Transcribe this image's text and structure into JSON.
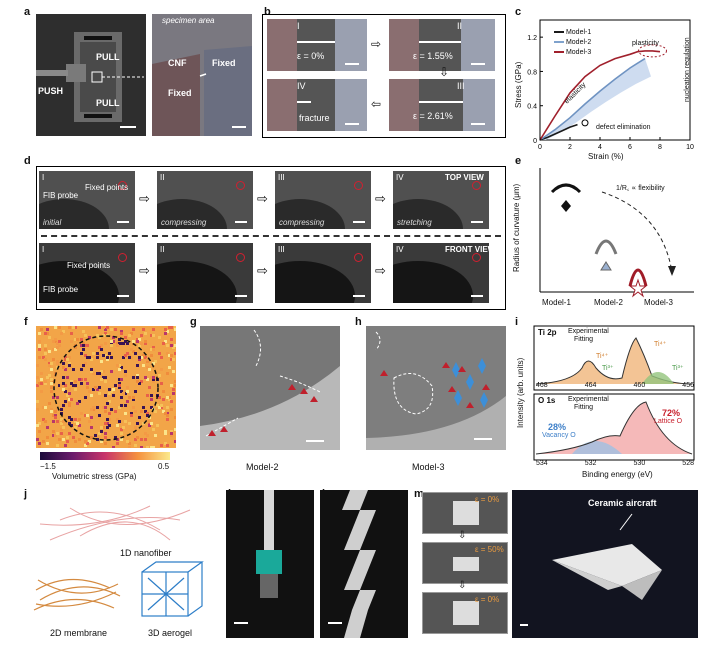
{
  "panels": {
    "a": "a",
    "b": "b",
    "c": "c",
    "d": "d",
    "e": "e",
    "f": "f",
    "g": "g",
    "h": "h",
    "i": "i",
    "j": "j",
    "k": "k",
    "l": "l",
    "m": "m",
    "n": "n"
  },
  "a": {
    "specimen_area": "specimen area",
    "push": "PUSH",
    "pull_top": "PULL",
    "pull_bottom": "PULL",
    "cnf": "CNF",
    "fixed1": "Fixed",
    "fixed2": "Fixed"
  },
  "b": {
    "frames": [
      {
        "num": "I",
        "label": "ε = 0%"
      },
      {
        "num": "II",
        "label": "ε = 1.55%"
      },
      {
        "num": "III",
        "label": "ε = 2.61%"
      },
      {
        "num": "IV",
        "label": "fracture"
      }
    ]
  },
  "c": {
    "legend": [
      "Model-1",
      "Model-2",
      "Model-3"
    ],
    "ylabel": "Stress (GPa)",
    "xlabel": "Strain (%)",
    "ticks_y": [
      "0",
      "0.4",
      "0.8",
      "1.2"
    ],
    "ticks_x": [
      "0",
      "2",
      "4",
      "6",
      "8",
      "10"
    ],
    "ann": {
      "plasticity": "plasticity",
      "elasticity": "elasticity",
      "defect": "defect elimination",
      "nucleation": "nucleation regulation"
    }
  },
  "chart_data": {
    "type": "line",
    "xlabel": "Strain (%)",
    "ylabel": "Stress (GPa)",
    "xlim": [
      0,
      10
    ],
    "ylim": [
      0,
      1.4
    ],
    "series": [
      {
        "name": "Model-1",
        "x": [
          0,
          0.5,
          1,
          1.5,
          2,
          2.5
        ],
        "y": [
          0,
          0.03,
          0.07,
          0.11,
          0.15,
          0.18
        ]
      },
      {
        "name": "Model-2",
        "x": [
          0,
          1,
          2,
          3,
          4,
          5,
          6,
          7
        ],
        "y": [
          0,
          0.12,
          0.26,
          0.42,
          0.57,
          0.71,
          0.84,
          0.95
        ]
      },
      {
        "name": "Model-3",
        "x": [
          0,
          1,
          2,
          3,
          4,
          5,
          6,
          6.5,
          7,
          7.5,
          8
        ],
        "y": [
          0,
          0.28,
          0.55,
          0.74,
          0.87,
          0.95,
          1.0,
          1.03,
          1.04,
          1.04,
          1.03
        ]
      }
    ]
  },
  "d": {
    "top": [
      {
        "num": "I",
        "caption": "initial"
      },
      {
        "num": "II",
        "caption": "compressing"
      },
      {
        "num": "III",
        "caption": "compressing"
      },
      {
        "num": "IV",
        "caption": "stretching"
      }
    ],
    "bottom": [
      {
        "num": "I"
      },
      {
        "num": "II"
      },
      {
        "num": "III"
      },
      {
        "num": "IV"
      }
    ],
    "top_view": "TOP VIEW",
    "front_view": "FRONT VIEW",
    "fib": "FIB probe",
    "fixed_points": "Fixed points"
  },
  "e": {
    "ylabel": "Radius of curvature (μm)",
    "formula": "1/R꜀ ∝ flexibility",
    "models": [
      "Model-1",
      "Model-2",
      "Model-3"
    ]
  },
  "f": {
    "cbar_min": "−1.5",
    "cbar_max": "0.5",
    "cbar_label": "Volumetric stress (GPa)"
  },
  "g": {
    "caption": "Model-2"
  },
  "h": {
    "caption": "Model-3"
  },
  "i": {
    "ti_label": "Ti 2p",
    "o_label": "O 1s",
    "exp": "Experimental",
    "fit": "Fitting",
    "ti4a": "Ti⁴⁺",
    "ti3a": "Ti³⁺",
    "ti4b": "Ti⁴⁺",
    "ti3b": "Ti³⁺",
    "vac_pct": "28%",
    "vac": "Vacancy O",
    "lat_pct": "72%",
    "lat": "Lattice O",
    "ylabel": "Intensity (arb. units)",
    "xlabel": "Binding energy (eV)",
    "ti_ticks": [
      "468",
      "464",
      "460",
      "456"
    ],
    "o_ticks": [
      "534",
      "532",
      "530",
      "528"
    ]
  },
  "j": {
    "nanofiber": "1D nanofiber",
    "membrane": "2D membrane",
    "aerogel": "3D aerogel"
  },
  "m": {
    "eps": [
      "ε = 0%",
      "ε = 50%",
      "ε = 0%"
    ]
  },
  "n": {
    "label": "Ceramic aircraft"
  }
}
